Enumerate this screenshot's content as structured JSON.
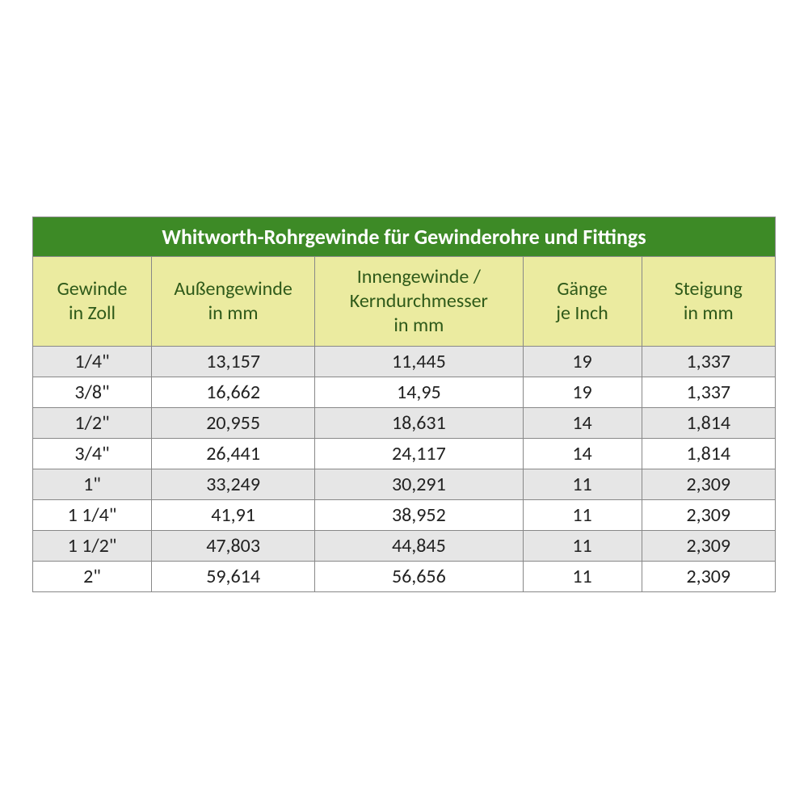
{
  "table": {
    "type": "table",
    "title": "Whitworth-Rohrgewinde für Gewinderohre und Fittings",
    "title_bg": "#3d8a26",
    "title_color": "#ffffff",
    "title_fontsize": 26,
    "header_bg": "#ebeba0",
    "header_color": "#2f5a1a",
    "header_fontsize": 24,
    "row_odd_bg": "#e6e6e6",
    "row_even_bg": "#ffffff",
    "border_color": "#888888",
    "body_fontsize": 24,
    "column_widths_pct": [
      16,
      22,
      28,
      16,
      18
    ],
    "columns": [
      {
        "line1": "Gewinde",
        "line2": "in Zoll"
      },
      {
        "line1": "Außengewinde",
        "line2": "in mm"
      },
      {
        "line1": "Innengewinde /",
        "line2": "Kerndurchmesser",
        "line3": "in mm"
      },
      {
        "line1": "Gänge",
        "line2": "je Inch"
      },
      {
        "line1": "Steigung",
        "line2": "in mm"
      }
    ],
    "rows": [
      [
        "1/4\"",
        "13,157",
        "11,445",
        "19",
        "1,337"
      ],
      [
        "3/8\"",
        "16,662",
        "14,95",
        "19",
        "1,337"
      ],
      [
        "1/2\"",
        "20,955",
        "18,631",
        "14",
        "1,814"
      ],
      [
        "3/4\"",
        "26,441",
        "24,117",
        "14",
        "1,814"
      ],
      [
        "1\"",
        "33,249",
        "30,291",
        "11",
        "2,309"
      ],
      [
        "1 1/4\"",
        "41,91",
        "38,952",
        "11",
        "2,309"
      ],
      [
        "1 1/2\"",
        "47,803",
        "44,845",
        "11",
        "2,309"
      ],
      [
        "2\"",
        "59,614",
        "56,656",
        "11",
        "2,309"
      ]
    ]
  }
}
